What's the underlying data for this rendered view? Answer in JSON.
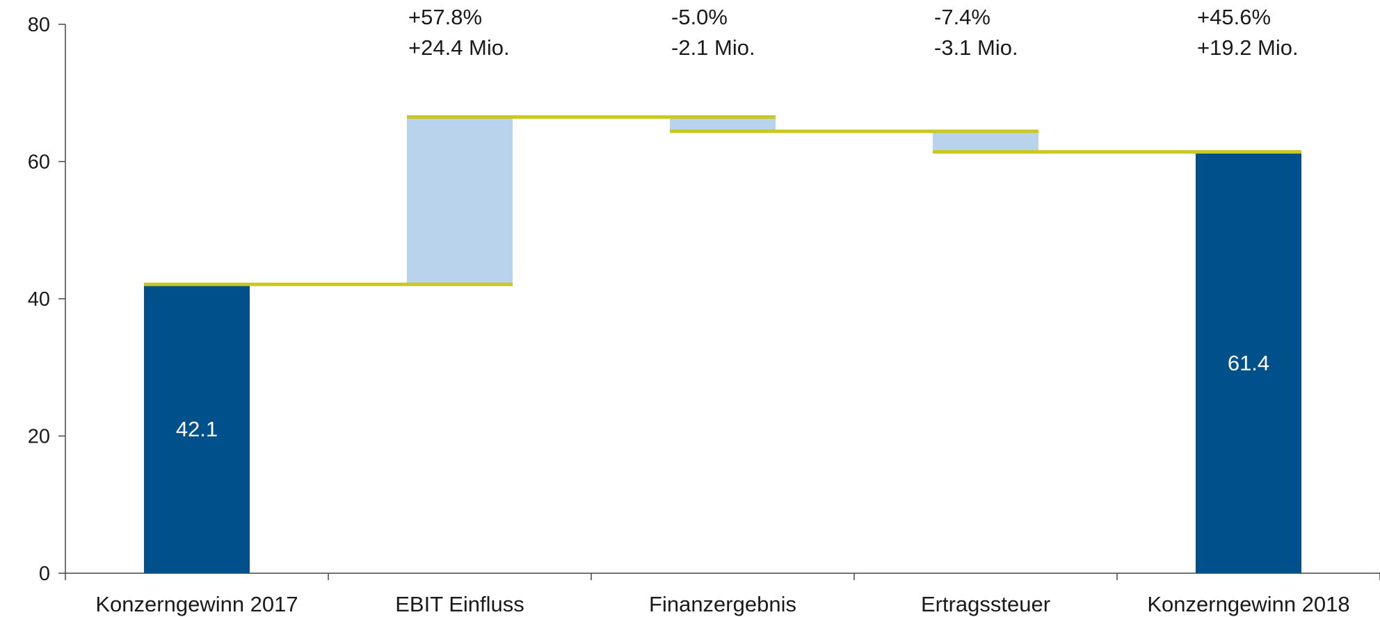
{
  "chart_data": {
    "type": "bar",
    "subtype": "waterfall",
    "categories": [
      "Konzerngewinn 2017",
      "EBIT Einfluss",
      "Finanzergebnis",
      "Ertragssteuer",
      "Konzerngewinn 2018"
    ],
    "steps": [
      {
        "category": "Konzerngewinn 2017",
        "kind": "total",
        "start": 0,
        "end": 42.1,
        "value_label": "42.1"
      },
      {
        "category": "EBIT Einfluss",
        "kind": "delta",
        "start": 42.1,
        "end": 66.5
      },
      {
        "category": "Finanzergebnis",
        "kind": "delta",
        "start": 66.5,
        "end": 64.4
      },
      {
        "category": "Ertragssteuer",
        "kind": "delta",
        "start": 64.4,
        "end": 61.4
      },
      {
        "category": "Konzerngewinn 2018",
        "kind": "total",
        "start": 0,
        "end": 61.4,
        "value_label": "61.4"
      }
    ],
    "annotations": [
      {
        "category": "EBIT Einfluss",
        "pct": "+57.8%",
        "abs": "+24.4 Mio."
      },
      {
        "category": "Finanzergebnis",
        "pct": "-5.0%",
        "abs": "-2.1 Mio."
      },
      {
        "category": "Ertragssteuer",
        "pct": "-7.4%",
        "abs": "-3.1 Mio."
      },
      {
        "category": "Konzerngewinn 2018",
        "pct": "+45.6%",
        "abs": "+19.2 Mio."
      }
    ],
    "connector_levels": [
      42.1,
      66.5,
      64.4,
      61.4
    ],
    "yticks": [
      0,
      20,
      40,
      60,
      80
    ],
    "ylim": [
      0,
      80
    ],
    "title": "",
    "xlabel": "",
    "ylabel": "",
    "grid": false,
    "legend": "none",
    "colors": {
      "total": "#00508c",
      "delta": "#bad3ec",
      "connector": "#c8c81e",
      "axis": "#444444"
    }
  }
}
